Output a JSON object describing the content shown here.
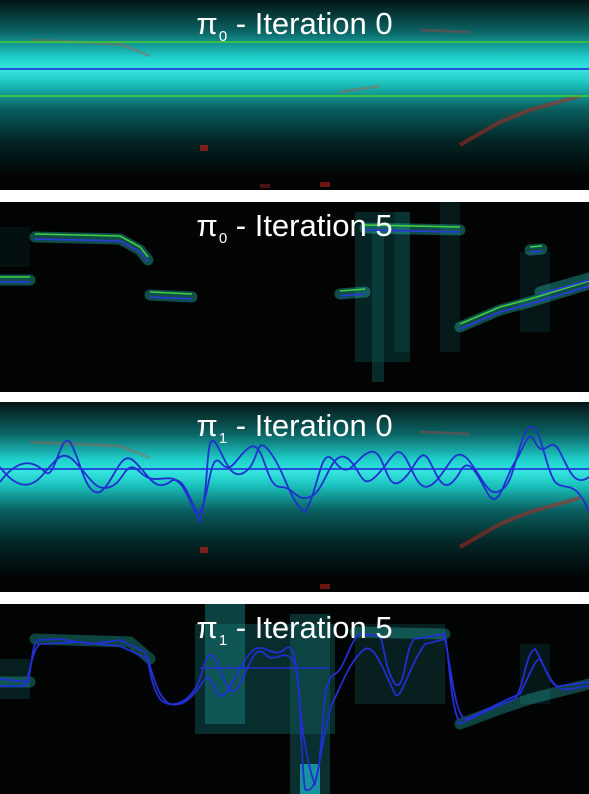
{
  "panels": [
    {
      "symbol": "π",
      "subscript": "0",
      "rest": " - Iteration 0"
    },
    {
      "symbol": "π",
      "subscript": "0",
      "rest": " - Iteration 5"
    },
    {
      "symbol": "π",
      "subscript": "1",
      "rest": " - Iteration 0"
    },
    {
      "symbol": "π",
      "subscript": "1",
      "rest": " - Iteration 5"
    }
  ]
}
